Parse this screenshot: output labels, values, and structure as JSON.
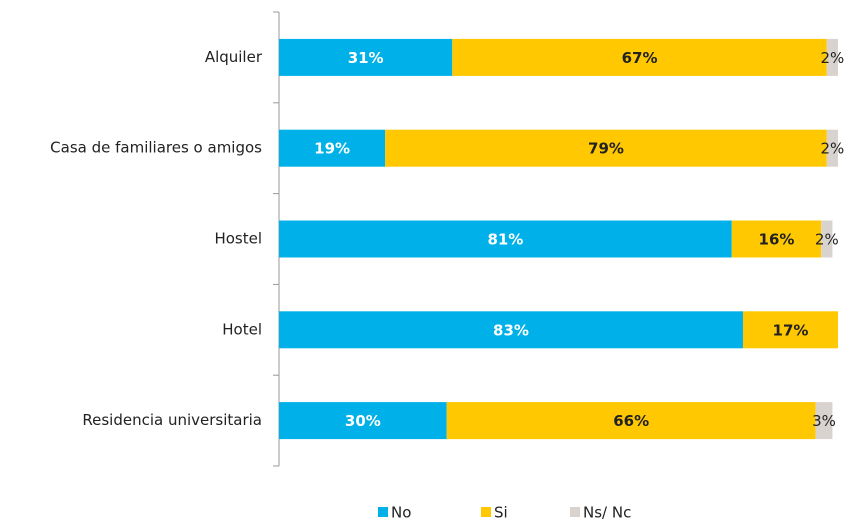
{
  "chart_data": {
    "type": "stacked-bar-horizontal",
    "categories": [
      "Alquiler",
      "Casa de familiares o amigos",
      "Hostel",
      "Hotel",
      "Residencia universitaria"
    ],
    "series": [
      {
        "name": "No",
        "color": "#00b0e8",
        "values": [
          31,
          19,
          81,
          83,
          30
        ],
        "value_labels": [
          "31%",
          "19%",
          "81%",
          "83%",
          "30%"
        ]
      },
      {
        "name": "Si",
        "color": "#ffc800",
        "values": [
          67,
          79,
          16,
          17,
          66
        ],
        "value_labels": [
          "67%",
          "79%",
          "16%",
          "17%",
          "66%"
        ]
      },
      {
        "name": "Ns/ Nc",
        "color": "#d9d3cf",
        "values": [
          2,
          2,
          2,
          null,
          3
        ],
        "value_labels": [
          "2%",
          "2%",
          "2%",
          null,
          "3%"
        ]
      }
    ],
    "legend": "bottom"
  }
}
